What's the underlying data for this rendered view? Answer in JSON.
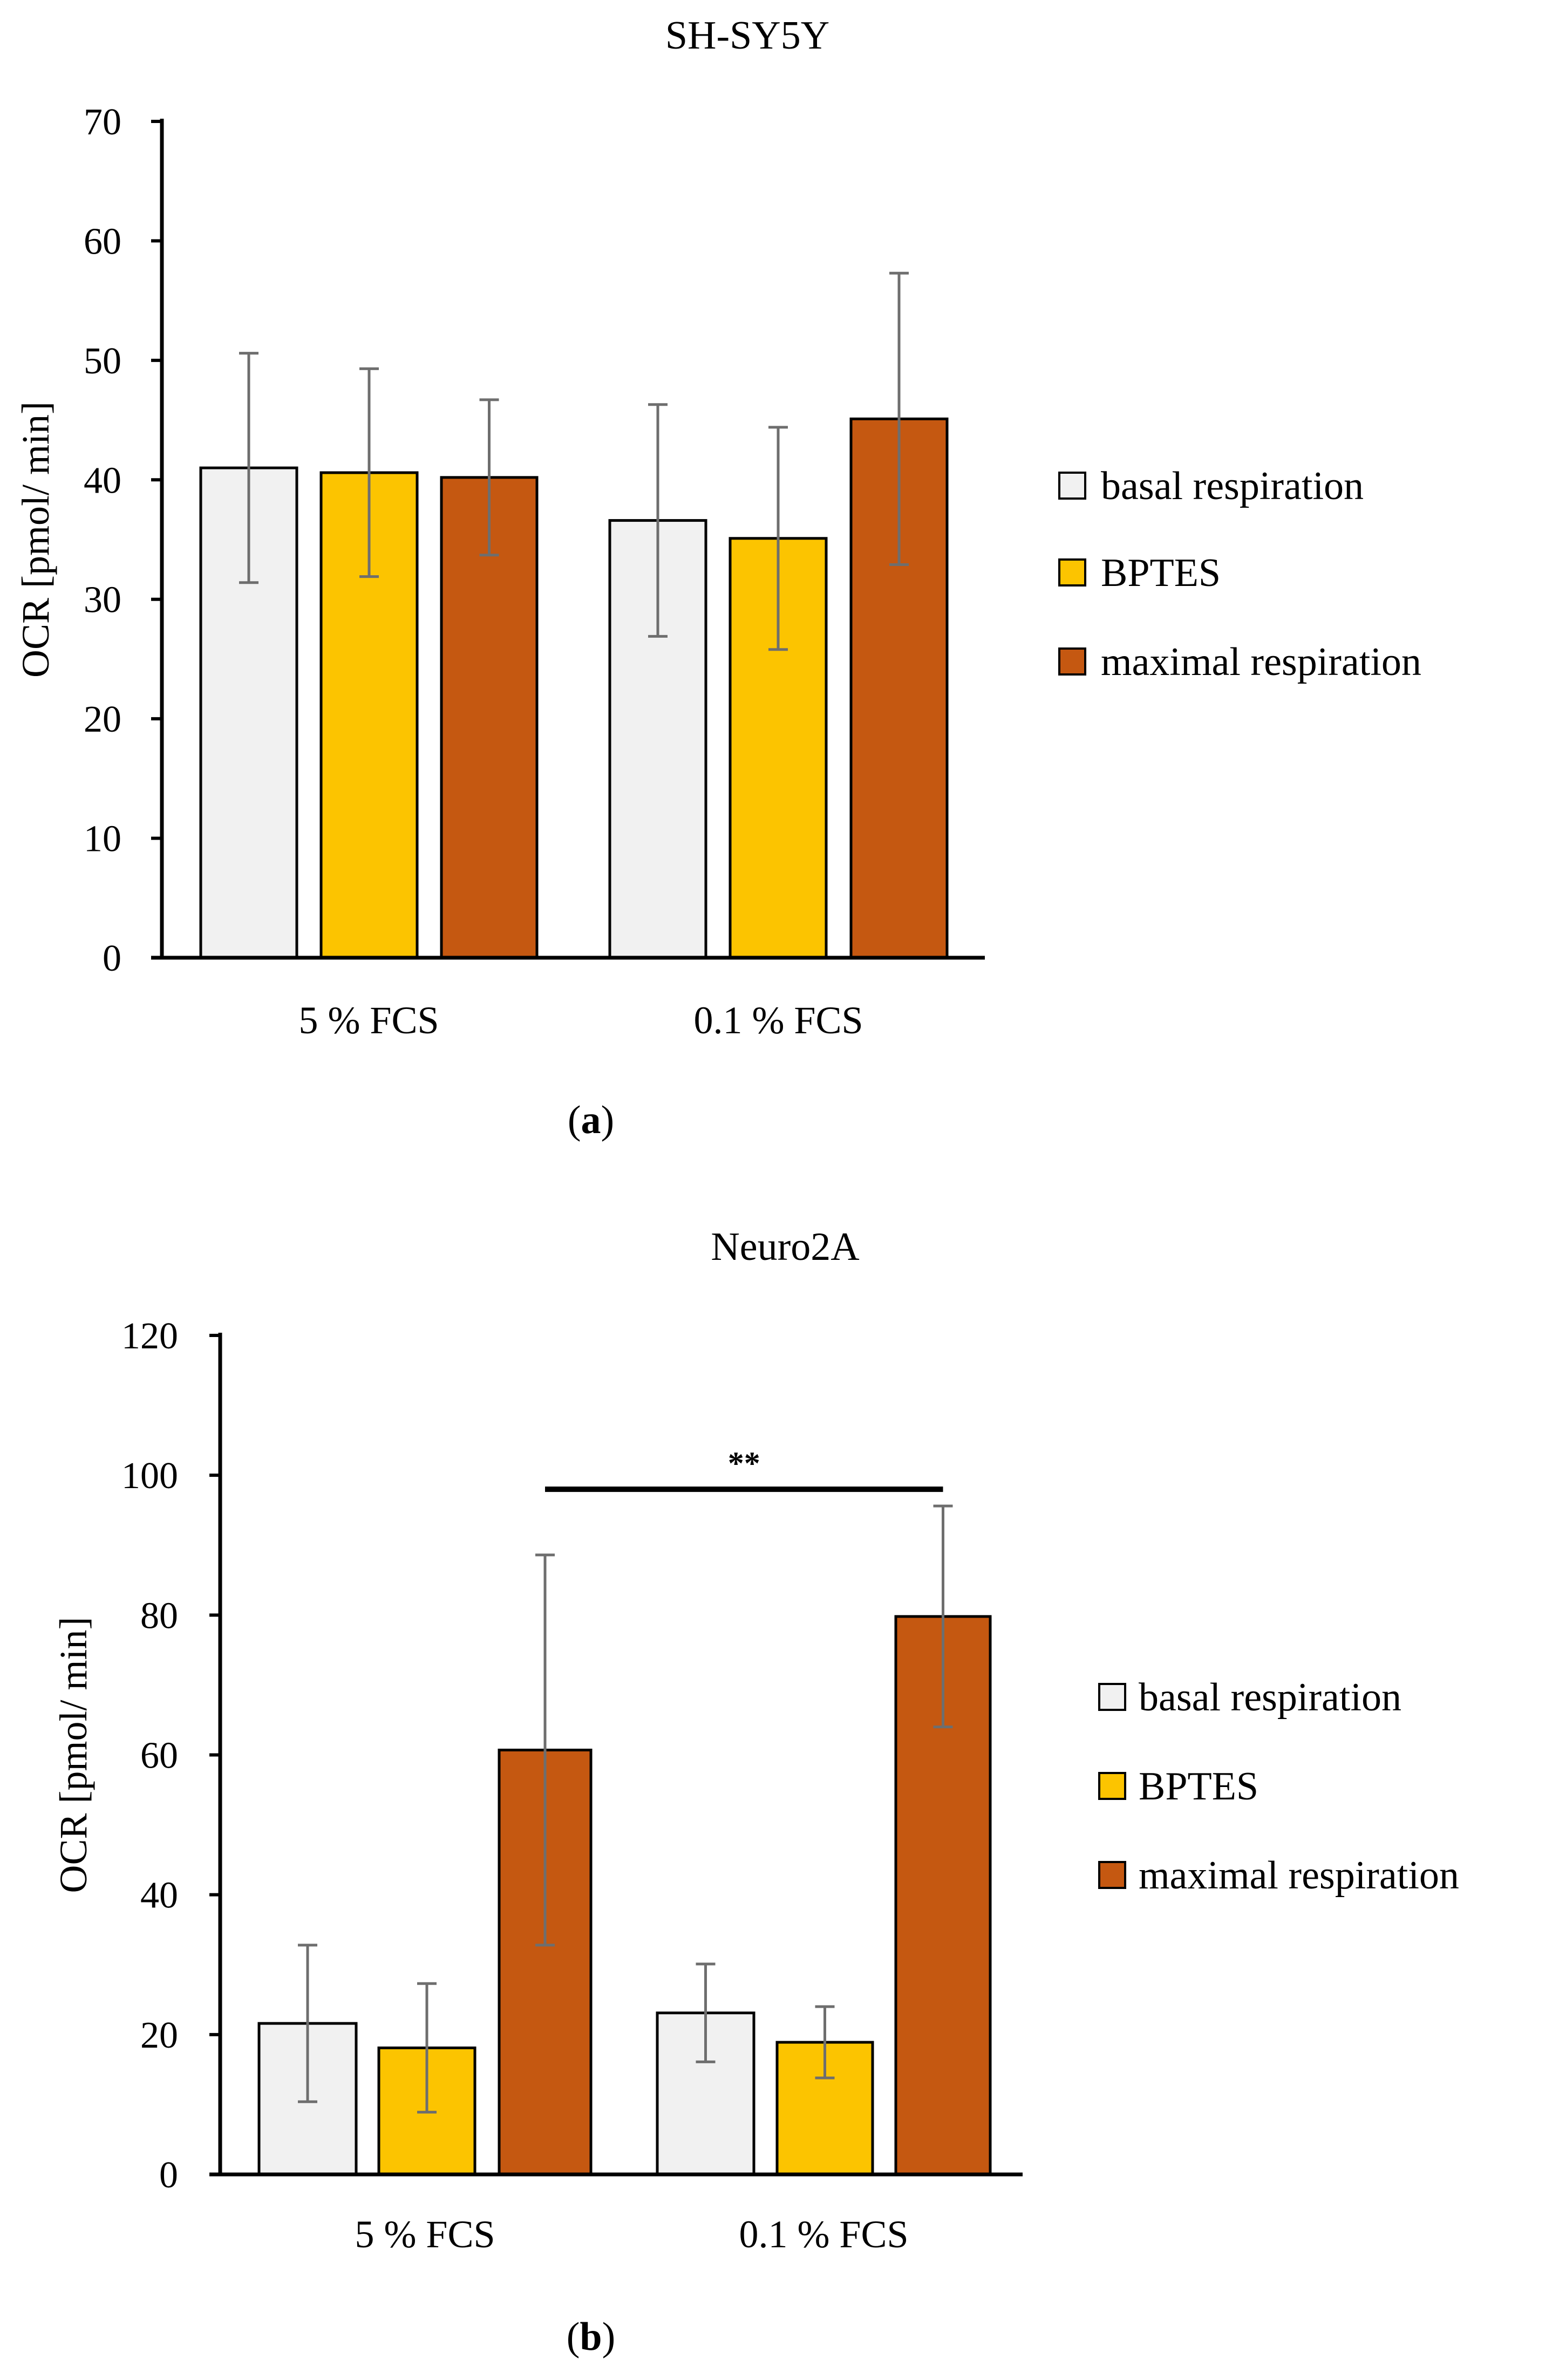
{
  "figure": {
    "panel_labels": [
      "a",
      "b"
    ]
  },
  "colors": {
    "basal respiration": "#f1f1f1",
    "BPTES": "#fcc400",
    "maximal respiration": "#c55811",
    "error_bar": "#6e6e6e",
    "axis": "#000000"
  },
  "chart_data": [
    {
      "type": "bar",
      "title": "SH-SY5Y",
      "panel_label": "a",
      "xlabel": "",
      "ylabel": "OCR [pmol/ min]",
      "categories": [
        "5 % FCS",
        "0.1 % FCS"
      ],
      "ylim": [
        0,
        70
      ],
      "yticks": [
        0,
        10,
        20,
        30,
        40,
        50,
        60,
        70
      ],
      "legend_position": "right",
      "series": [
        {
          "name": "basal respiration",
          "values": [
            41.0,
            36.6
          ],
          "errors": [
            9.6,
            9.7
          ]
        },
        {
          "name": "BPTES",
          "values": [
            40.6,
            35.1
          ],
          "errors": [
            8.7,
            9.3
          ]
        },
        {
          "name": "maximal respiration",
          "values": [
            40.2,
            45.1
          ],
          "errors": [
            6.5,
            12.2
          ]
        }
      ],
      "significance": []
    },
    {
      "type": "bar",
      "title": "Neuro2A",
      "panel_label": "b",
      "xlabel": "",
      "ylabel": "OCR [pmol/ min]",
      "categories": [
        "5 % FCS",
        "0.1 % FCS"
      ],
      "ylim": [
        0,
        120
      ],
      "yticks": [
        0,
        20,
        40,
        60,
        80,
        100,
        120
      ],
      "legend_position": "right",
      "series": [
        {
          "name": "basal respiration",
          "values": [
            21.6,
            23.1
          ],
          "errors": [
            11.2,
            7.0
          ]
        },
        {
          "name": "BPTES",
          "values": [
            18.1,
            18.9
          ],
          "errors": [
            9.2,
            5.1
          ]
        },
        {
          "name": "maximal respiration",
          "values": [
            60.7,
            79.8
          ],
          "errors": [
            27.9,
            15.8
          ]
        }
      ],
      "significance": [
        {
          "label": "**",
          "from": {
            "category": 0,
            "series": 2
          },
          "to": {
            "category": 1,
            "series": 2
          },
          "y": 98
        }
      ]
    }
  ]
}
